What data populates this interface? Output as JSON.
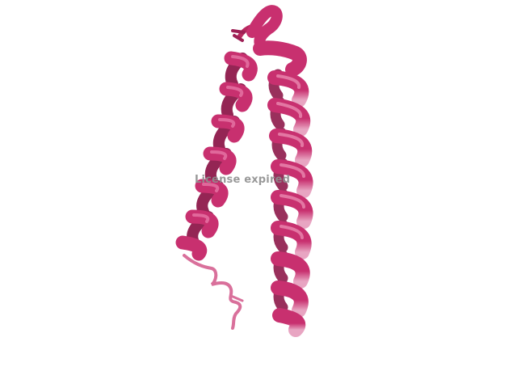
{
  "viewer": {
    "background_color": "#ffffff",
    "watermark_text": "License expired"
  },
  "structure": {
    "representation": "cartoon",
    "colors": {
      "ribbon": "#c8306f",
      "ribbon_dark": "#9e1f55",
      "ribbon_light": "#e07aa5",
      "coil": "#d9709b"
    }
  }
}
